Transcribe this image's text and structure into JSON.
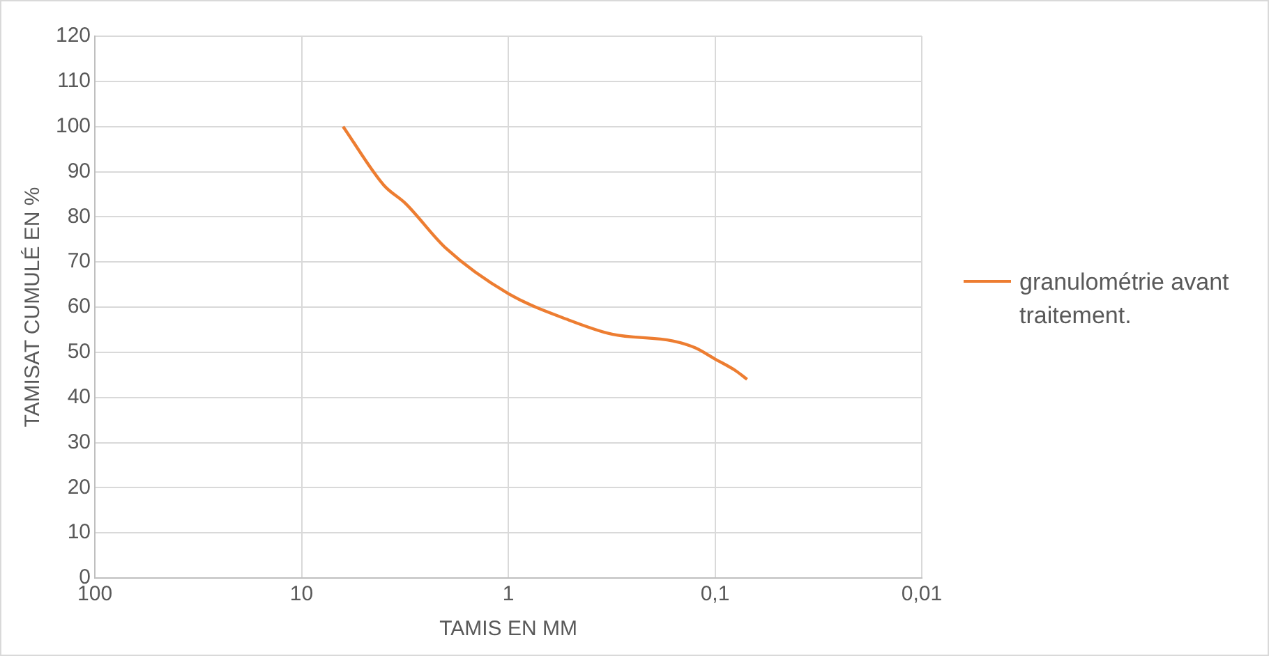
{
  "chart_data": {
    "type": "line",
    "xlabel": "TAMIS EN MM",
    "ylabel": "TAMISAT CUMULÉ EN %",
    "log": "x",
    "xlim": [
      100,
      0.01
    ],
    "xticks": [
      100,
      10,
      1,
      {
        "value": 0.1,
        "label": "0,1"
      },
      {
        "value": 0.01,
        "label": "0,01"
      }
    ],
    "ylim": [
      0,
      120
    ],
    "yticks": [
      0,
      10,
      20,
      30,
      40,
      50,
      60,
      70,
      80,
      90,
      100,
      110,
      120
    ],
    "grid": true,
    "legend": "right",
    "marker": "none",
    "line_style": "solid",
    "series": [
      {
        "name": "granulométrie avant traitement.",
        "color": "#ed7d31",
        "x": [
          6.3,
          4,
          3.15,
          2,
          1,
          0.5,
          0.315,
          0.16,
          0.125,
          0.1,
          0.08,
          0.07
        ],
        "values": [
          100,
          87,
          83,
          73,
          63,
          57,
          54,
          52.5,
          51,
          48.5,
          46,
          44
        ]
      }
    ]
  }
}
